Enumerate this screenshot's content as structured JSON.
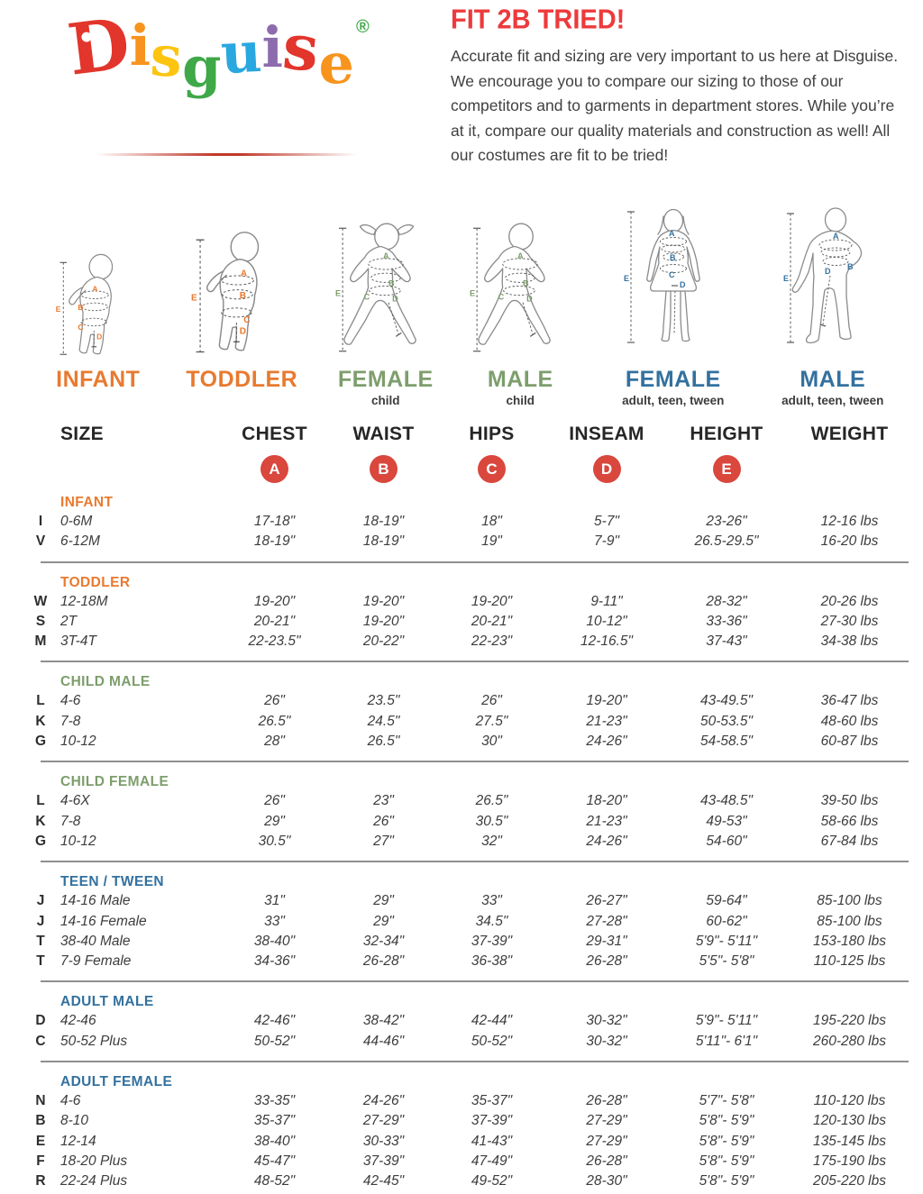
{
  "brand": {
    "logo_letters": [
      {
        "char": "D",
        "color": "#e2352b"
      },
      {
        "char": "i",
        "color": "#f7941d"
      },
      {
        "char": "s",
        "color": "#fdc410"
      },
      {
        "char": "g",
        "color": "#3fa848"
      },
      {
        "char": "u",
        "color": "#29a8e0"
      },
      {
        "char": "i",
        "color": "#8d6cae"
      },
      {
        "char": "s",
        "color": "#e2352b"
      },
      {
        "char": "e",
        "color": "#f7941d"
      }
    ],
    "registered_mark": "®",
    "registered_mark_color": "#3fa848"
  },
  "header": {
    "title": "FIT 2B TRIED!",
    "title_color": "#ed3a3c",
    "body": "Accurate fit and sizing are very important to us here at Disguise. We encourage you to compare our sizing to those of our competitors and to garments in department stores. While you’re at it, compare our quality materials and construction as well! All our costumes are fit to be tried!"
  },
  "measures": {
    "letters": [
      "A",
      "B",
      "C",
      "D",
      "E"
    ],
    "badge_color": "#d9473d"
  },
  "figures": [
    {
      "caption": "INFANT",
      "subtitle": "",
      "color": "#e87a2f"
    },
    {
      "caption": "TODDLER",
      "subtitle": "",
      "color": "#e87a2f"
    },
    {
      "caption": "FEMALE",
      "subtitle": "child",
      "color": "#7d9e6c"
    },
    {
      "caption": "MALE",
      "subtitle": "child",
      "color": "#7d9e6c"
    },
    {
      "caption": "FEMALE",
      "subtitle": "adult, teen, tween",
      "color": "#33719f"
    },
    {
      "caption": "MALE",
      "subtitle": "adult, teen, tween",
      "color": "#33719f"
    }
  ],
  "table": {
    "columns": [
      "SIZE",
      "CHEST",
      "WAIST",
      "HIPS",
      "INSEAM",
      "HEIGHT",
      "WEIGHT"
    ],
    "sections": [
      {
        "name": "INFANT",
        "color": "#e87a2f",
        "rows": [
          [
            "I",
            "0-6M",
            "17-18\"",
            "18-19\"",
            "18\"",
            "5-7\"",
            "23-26\"",
            "12-16 lbs"
          ],
          [
            "V",
            "6-12M",
            "18-19\"",
            "18-19\"",
            "19\"",
            "7-9\"",
            "26.5-29.5\"",
            "16-20 lbs"
          ]
        ]
      },
      {
        "name": "TODDLER",
        "color": "#e87a2f",
        "rows": [
          [
            "W",
            "12-18M",
            "19-20\"",
            "19-20\"",
            "19-20\"",
            "9-11\"",
            "28-32\"",
            "20-26 lbs"
          ],
          [
            "S",
            "2T",
            "20-21\"",
            "19-20\"",
            "20-21\"",
            "10-12\"",
            "33-36\"",
            "27-30 lbs"
          ],
          [
            "M",
            "3T-4T",
            "22-23.5\"",
            "20-22\"",
            "22-23\"",
            "12-16.5\"",
            "37-43\"",
            "34-38 lbs"
          ]
        ]
      },
      {
        "name": "CHILD MALE",
        "color": "#7d9e6c",
        "rows": [
          [
            "L",
            "4-6",
            "26\"",
            "23.5\"",
            "26\"",
            "19-20\"",
            "43-49.5\"",
            "36-47 lbs"
          ],
          [
            "K",
            "7-8",
            "26.5\"",
            "24.5\"",
            "27.5\"",
            "21-23\"",
            "50-53.5\"",
            "48-60 lbs"
          ],
          [
            "G",
            "10-12",
            "28\"",
            "26.5\"",
            "30\"",
            "24-26\"",
            "54-58.5\"",
            "60-87 lbs"
          ]
        ]
      },
      {
        "name": "CHILD FEMALE",
        "color": "#7d9e6c",
        "rows": [
          [
            "L",
            "4-6X",
            "26\"",
            "23\"",
            "26.5\"",
            "18-20\"",
            "43-48.5\"",
            "39-50 lbs"
          ],
          [
            "K",
            "7-8",
            "29\"",
            "26\"",
            "30.5\"",
            "21-23\"",
            "49-53\"",
            "58-66 lbs"
          ],
          [
            "G",
            "10-12",
            "30.5\"",
            "27\"",
            "32\"",
            "24-26\"",
            "54-60\"",
            "67-84 lbs"
          ]
        ]
      },
      {
        "name": "TEEN / TWEEN",
        "color": "#33719f",
        "rows": [
          [
            "J",
            "14-16 Male",
            "31\"",
            "29\"",
            "33\"",
            "26-27\"",
            "59-64\"",
            "85-100 lbs"
          ],
          [
            "J",
            "14-16 Female",
            "33\"",
            "29\"",
            "34.5\"",
            "27-28\"",
            "60-62\"",
            "85-100 lbs"
          ],
          [
            "T",
            "38-40 Male",
            "38-40\"",
            "32-34\"",
            "37-39\"",
            "29-31\"",
            "5'9\"- 5'11\"",
            "153-180 lbs"
          ],
          [
            "T",
            "7-9 Female",
            "34-36\"",
            "26-28\"",
            "36-38\"",
            "26-28\"",
            "5'5\"- 5'8\"",
            "110-125 lbs"
          ]
        ]
      },
      {
        "name": "ADULT MALE",
        "color": "#33719f",
        "rows": [
          [
            "D",
            "42-46",
            "42-46\"",
            "38-42\"",
            "42-44\"",
            "30-32\"",
            "5'9\"- 5'11\"",
            "195-220 lbs"
          ],
          [
            "C",
            "50-52 Plus",
            "50-52\"",
            "44-46\"",
            "50-52\"",
            "30-32\"",
            "5'11\"- 6'1\"",
            "260-280 lbs"
          ]
        ]
      },
      {
        "name": "ADULT FEMALE",
        "color": "#33719f",
        "rows": [
          [
            "N",
            "4-6",
            "33-35\"",
            "24-26\"",
            "35-37\"",
            "26-28\"",
            "5'7\"- 5'8\"",
            "110-120 lbs"
          ],
          [
            "B",
            "8-10",
            "35-37\"",
            "27-29\"",
            "37-39\"",
            "27-29\"",
            "5'8\"- 5'9\"",
            "120-130 lbs"
          ],
          [
            "E",
            "12-14",
            "38-40\"",
            "30-33\"",
            "41-43\"",
            "27-29\"",
            "5'8\"- 5'9\"",
            "135-145 lbs"
          ],
          [
            "F",
            "18-20 Plus",
            "45-47\"",
            "37-39\"",
            "47-49\"",
            "26-28\"",
            "5'8\"- 5'9\"",
            "175-190 lbs"
          ],
          [
            "R",
            "22-24 Plus",
            "48-52\"",
            "42-45\"",
            "49-52\"",
            "28-30\"",
            "5'8\"- 5'9\"",
            "205-220 lbs"
          ]
        ]
      }
    ]
  }
}
